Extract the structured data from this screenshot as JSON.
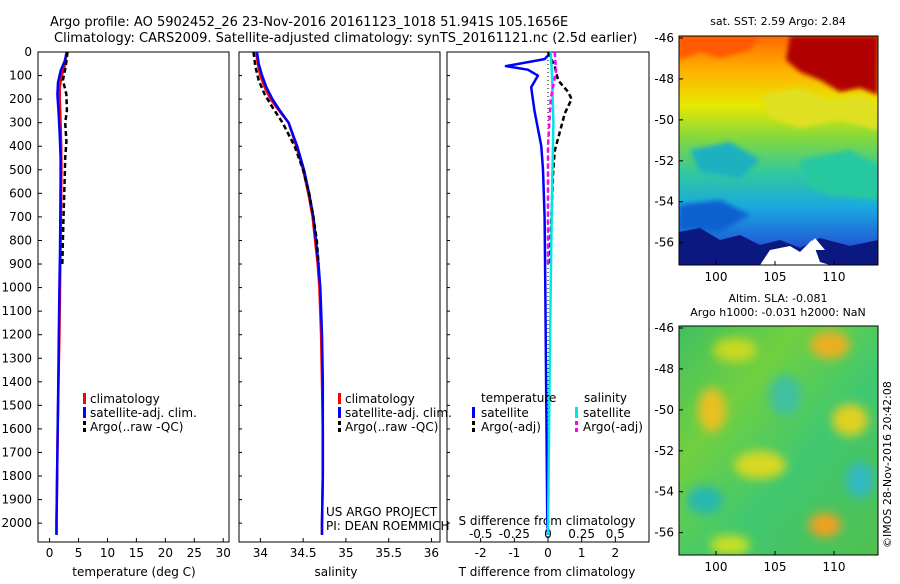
{
  "header": {
    "title_line1": "Argo profile: AO 5902452_26 23-Nov-2016 20161123_1018 51.941S 105.1656E",
    "title_line2": "Climatology: CARS2009. Satellite-adjusted climatology: synTS_20161121.nc (2.5d earlier)"
  },
  "colors": {
    "climatology": "#ff0000",
    "satellite": "#0000ff",
    "argo": "#000000",
    "sal_satellite": "#00e5e5",
    "sal_argo": "#ff00ff"
  },
  "chart_data": [
    {
      "type": "line",
      "id": "temperature",
      "xlabel": "temperature (deg C)",
      "ylabel": "",
      "xlim": [
        -2,
        31
      ],
      "ylim": [
        2080,
        0
      ],
      "xticks": [
        0,
        5,
        10,
        15,
        20,
        25,
        30
      ],
      "yticks": [
        0,
        100,
        200,
        300,
        400,
        500,
        600,
        700,
        800,
        900,
        1000,
        1100,
        1200,
        1300,
        1400,
        1500,
        1600,
        1700,
        1800,
        1900,
        2000
      ],
      "legend": [
        "climatology",
        "satellite-adj. clim.",
        "Argo(..raw -QC)"
      ],
      "series": [
        {
          "name": "climatology",
          "color": "#ff0000",
          "style": "solid",
          "points": [
            [
              2.9,
              0
            ],
            [
              2.7,
              50
            ],
            [
              2.1,
              100
            ],
            [
              1.75,
              150
            ],
            [
              1.75,
              200
            ],
            [
              1.9,
              300
            ],
            [
              2.0,
              400
            ],
            [
              2.05,
              500
            ],
            [
              2.0,
              600
            ],
            [
              1.95,
              700
            ],
            [
              1.9,
              800
            ],
            [
              1.8,
              1000
            ],
            [
              1.7,
              1200
            ],
            [
              1.55,
              1400
            ],
            [
              1.4,
              1600
            ],
            [
              1.3,
              1800
            ],
            [
              1.2,
              2000
            ],
            [
              1.2,
              2050
            ]
          ]
        },
        {
          "name": "satellite-adj. clim.",
          "color": "#0000ff",
          "style": "solid",
          "points": [
            [
              3.0,
              0
            ],
            [
              2.6,
              40
            ],
            [
              1.9,
              80
            ],
            [
              1.45,
              130
            ],
            [
              1.35,
              180
            ],
            [
              1.55,
              250
            ],
            [
              1.75,
              350
            ],
            [
              1.9,
              450
            ],
            [
              1.9,
              550
            ],
            [
              1.85,
              700
            ],
            [
              1.8,
              850
            ],
            [
              1.7,
              1000
            ],
            [
              1.6,
              1200
            ],
            [
              1.5,
              1400
            ],
            [
              1.4,
              1600
            ],
            [
              1.3,
              1800
            ],
            [
              1.2,
              2000
            ],
            [
              1.2,
              2050
            ]
          ]
        },
        {
          "name": "Argo(..raw -QC)",
          "color": "#000000",
          "style": "dashed",
          "points": [
            [
              3.1,
              0
            ],
            [
              2.8,
              60
            ],
            [
              2.3,
              120
            ],
            [
              2.9,
              180
            ],
            [
              3.0,
              250
            ],
            [
              2.7,
              300
            ],
            [
              2.9,
              380
            ],
            [
              2.7,
              450
            ],
            [
              2.6,
              550
            ],
            [
              2.4,
              700
            ],
            [
              2.3,
              800
            ],
            [
              2.2,
              900
            ]
          ]
        }
      ]
    },
    {
      "type": "line",
      "id": "salinity",
      "xlabel": "salinity",
      "ylabel": "",
      "xlim": [
        33.75,
        36.1
      ],
      "ylim": [
        2080,
        0
      ],
      "xticks": [
        34,
        34.5,
        35,
        35.5,
        36
      ],
      "legend": [
        "climatology",
        "satellite-adj. clim.",
        "Argo(..raw -QC)"
      ],
      "annotation": [
        "US ARGO PROJECT",
        "PI: DEAN ROEMMICH"
      ],
      "series": [
        {
          "name": "climatology",
          "color": "#ff0000",
          "style": "solid",
          "points": [
            [
              33.95,
              0
            ],
            [
              33.97,
              50
            ],
            [
              34.0,
              100
            ],
            [
              34.05,
              150
            ],
            [
              34.12,
              200
            ],
            [
              34.22,
              250
            ],
            [
              34.33,
              300
            ],
            [
              34.42,
              400
            ],
            [
              34.5,
              500
            ],
            [
              34.56,
              600
            ],
            [
              34.61,
              700
            ],
            [
              34.64,
              800
            ],
            [
              34.67,
              900
            ],
            [
              34.69,
              1000
            ],
            [
              34.71,
              1200
            ],
            [
              34.72,
              1400
            ],
            [
              34.73,
              1600
            ],
            [
              34.73,
              1800
            ],
            [
              34.72,
              2000
            ],
            [
              34.72,
              2050
            ]
          ]
        },
        {
          "name": "satellite-adj. clim.",
          "color": "#0000ff",
          "style": "solid",
          "points": [
            [
              33.96,
              0
            ],
            [
              33.98,
              50
            ],
            [
              34.02,
              100
            ],
            [
              34.07,
              150
            ],
            [
              34.14,
              200
            ],
            [
              34.23,
              250
            ],
            [
              34.33,
              300
            ],
            [
              34.43,
              400
            ],
            [
              34.51,
              500
            ],
            [
              34.57,
              600
            ],
            [
              34.62,
              700
            ],
            [
              34.65,
              800
            ],
            [
              34.68,
              900
            ],
            [
              34.7,
              1000
            ],
            [
              34.72,
              1200
            ],
            [
              34.73,
              1400
            ],
            [
              34.73,
              1600
            ],
            [
              34.73,
              1800
            ],
            [
              34.72,
              2000
            ],
            [
              34.72,
              2050
            ]
          ]
        },
        {
          "name": "Argo(..raw -QC)",
          "color": "#000000",
          "style": "dashed",
          "points": [
            [
              33.92,
              0
            ],
            [
              33.94,
              60
            ],
            [
              33.98,
              120
            ],
            [
              34.05,
              180
            ],
            [
              34.15,
              240
            ],
            [
              34.26,
              300
            ],
            [
              34.4,
              400
            ],
            [
              34.5,
              500
            ],
            [
              34.57,
              600
            ],
            [
              34.62,
              700
            ],
            [
              34.66,
              800
            ],
            [
              34.68,
              900
            ]
          ]
        }
      ]
    },
    {
      "type": "line",
      "id": "difference",
      "xlabel": "T difference from climatology",
      "top_xlabel": "S difference from climatology",
      "xlim": [
        -3,
        3
      ],
      "top_xlim": [
        -0.75,
        0.75
      ],
      "ylim": [
        2080,
        0
      ],
      "xticks": [
        -2,
        -1,
        0,
        1,
        2
      ],
      "top_xticks": [
        -0.5,
        -0.25,
        0,
        0.25,
        0.5
      ],
      "top_xtick_labels": [
        "-0.5",
        "-0.25",
        "0",
        "0.25",
        "0.5"
      ],
      "legend_headers": [
        "temperature",
        "salinity"
      ],
      "legend": [
        "satellite",
        "Argo(-adj)",
        "satellite",
        "Argo(-adj)"
      ],
      "series": [
        {
          "name": "satellite",
          "group": "temperature",
          "color": "#0000ff",
          "style": "solid",
          "points": [
            [
              0.1,
              0
            ],
            [
              -0.1,
              30
            ],
            [
              -1.25,
              60
            ],
            [
              -0.6,
              75
            ],
            [
              -0.3,
              100
            ],
            [
              -0.5,
              150
            ],
            [
              -0.4,
              250
            ],
            [
              -0.2,
              400
            ],
            [
              -0.15,
              500
            ],
            [
              -0.1,
              700
            ],
            [
              -0.08,
              1000
            ],
            [
              -0.05,
              1500
            ],
            [
              -0.02,
              2000
            ],
            [
              0.0,
              2050
            ]
          ]
        },
        {
          "name": "Argo(-adj)",
          "group": "temperature",
          "color": "#000000",
          "style": "dashed",
          "points": [
            [
              0.0,
              0
            ],
            [
              0.2,
              60
            ],
            [
              0.3,
              120
            ],
            [
              0.6,
              170
            ],
            [
              0.7,
              200
            ],
            [
              0.5,
              260
            ],
            [
              0.35,
              340
            ],
            [
              0.2,
              420
            ],
            [
              0.15,
              520
            ],
            [
              0.1,
              700
            ],
            [
              0.05,
              900
            ]
          ]
        },
        {
          "name": "satellite",
          "group": "salinity",
          "color": "#00e5e5",
          "style": "solid",
          "points": [
            [
              0.02,
              0
            ],
            [
              0.03,
              100
            ],
            [
              0.04,
              300
            ],
            [
              0.03,
              600
            ],
            [
              0.02,
              1000
            ],
            [
              0.01,
              1500
            ],
            [
              0.0,
              2050
            ]
          ]
        },
        {
          "name": "Argo(-adj)",
          "group": "salinity",
          "color": "#ff00ff",
          "style": "dashed",
          "points": [
            [
              0.05,
              0
            ],
            [
              0.06,
              80
            ],
            [
              0.02,
              200
            ],
            [
              0.0,
              400
            ],
            [
              0.0,
              600
            ],
            [
              0.0,
              900
            ]
          ]
        }
      ]
    }
  ],
  "maps": {
    "sst": {
      "title": "sat. SST: 2.59 Argo: 2.84",
      "yticks": [
        "-46",
        "-48",
        "-50",
        "-52",
        "-54",
        "-56"
      ],
      "xticks": [
        "100",
        "105",
        "110"
      ]
    },
    "sla": {
      "title_line1": "Altim. SLA: -0.081",
      "title_line2": "Argo h1000: -0.031 h2000: NaN",
      "yticks": [
        "-46",
        "-48",
        "-50",
        "-52",
        "-54",
        "-56"
      ],
      "xticks": [
        "100",
        "105",
        "110"
      ]
    }
  },
  "watermark": "©IMOS 28-Nov-2016 20:42:08"
}
